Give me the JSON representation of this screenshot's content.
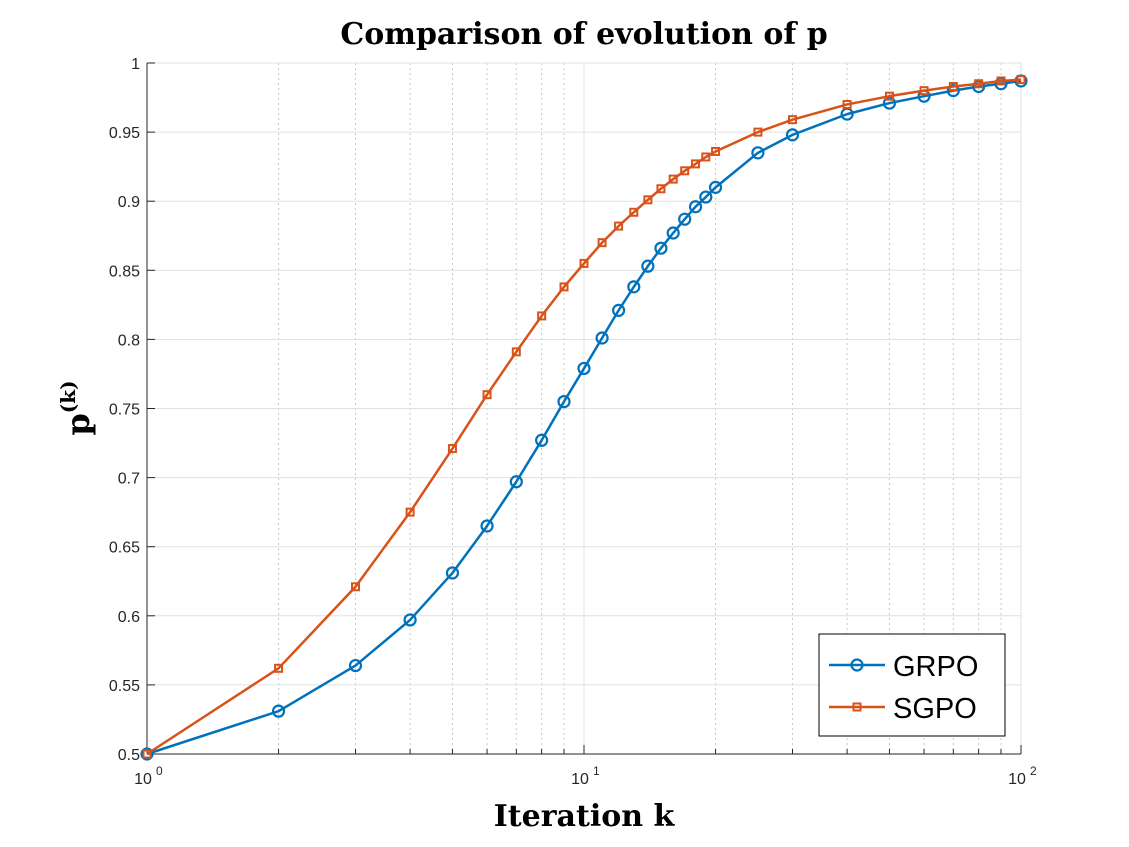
{
  "chart_data": {
    "type": "line",
    "title": "Comparison of evolution of p",
    "xlabel": "Iteration k",
    "ylabel": "p",
    "ylabel_superscript": "(k)",
    "xscale": "log",
    "xlim": [
      1,
      100
    ],
    "ylim": [
      0.5,
      1.0
    ],
    "xticks": [
      {
        "value": 1,
        "base": "10",
        "exp": "0"
      },
      {
        "value": 10,
        "base": "10",
        "exp": "1"
      },
      {
        "value": 100,
        "base": "10",
        "exp": "2"
      }
    ],
    "yticks": [
      "0.5",
      "0.55",
      "0.6",
      "0.65",
      "0.7",
      "0.75",
      "0.8",
      "0.85",
      "0.9",
      "0.95",
      "1"
    ],
    "grid": true,
    "legend_position": "bottom-right",
    "series": [
      {
        "name": "GRPO",
        "color": "#0072BD",
        "marker": "circle",
        "x": [
          1,
          2,
          3,
          4,
          5,
          6,
          7,
          8,
          9,
          10,
          11,
          12,
          13,
          14,
          15,
          16,
          17,
          18,
          19,
          20,
          25,
          30,
          40,
          50,
          60,
          70,
          80,
          90,
          100
        ],
        "y": [
          0.5,
          0.531,
          0.564,
          0.597,
          0.631,
          0.665,
          0.697,
          0.727,
          0.755,
          0.779,
          0.801,
          0.821,
          0.838,
          0.853,
          0.866,
          0.877,
          0.887,
          0.896,
          0.903,
          0.91,
          0.935,
          0.948,
          0.963,
          0.971,
          0.976,
          0.98,
          0.983,
          0.985,
          0.987
        ]
      },
      {
        "name": "SGPO",
        "color": "#D95319",
        "marker": "square",
        "x": [
          1,
          2,
          3,
          4,
          5,
          6,
          7,
          8,
          9,
          10,
          11,
          12,
          13,
          14,
          15,
          16,
          17,
          18,
          19,
          20,
          25,
          30,
          40,
          50,
          60,
          70,
          80,
          90,
          100
        ],
        "y": [
          0.5,
          0.562,
          0.621,
          0.675,
          0.721,
          0.76,
          0.791,
          0.817,
          0.838,
          0.855,
          0.87,
          0.882,
          0.892,
          0.901,
          0.909,
          0.916,
          0.922,
          0.927,
          0.932,
          0.936,
          0.95,
          0.959,
          0.97,
          0.976,
          0.98,
          0.983,
          0.985,
          0.987,
          0.988
        ]
      }
    ]
  }
}
